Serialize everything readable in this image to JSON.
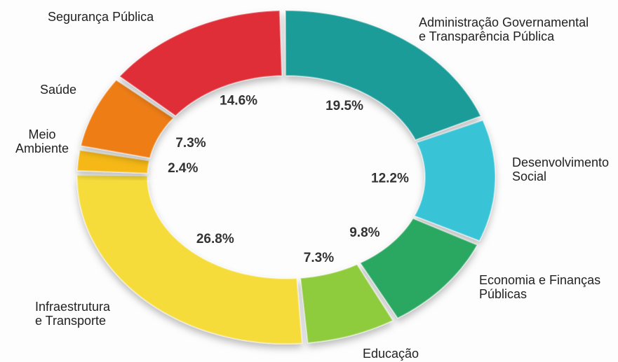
{
  "chart_data": {
    "type": "donut",
    "categories": [
      "Administração Governamental\ne Transparência Pública",
      "Desenvolvimento\nSocial",
      "Economia e Finanças\nPúblicas",
      "Educação",
      "Infraestrutura\ne Transporte",
      "Meio\nAmbiente",
      "Saúde",
      "Segurança Pública"
    ],
    "values": [
      19.5,
      12.2,
      9.8,
      7.3,
      26.8,
      2.4,
      7.3,
      14.6
    ],
    "value_labels": [
      "19.5%",
      "12.2%",
      "9.8%",
      "7.3%",
      "26.8%",
      "2.4%",
      "7.3%",
      "14.6%"
    ],
    "colors": [
      "#1a9c98",
      "#38c3d6",
      "#2aa862",
      "#8fcc3c",
      "#f6dc3a",
      "#f5b817",
      "#ee7d17",
      "#df2f38"
    ]
  }
}
